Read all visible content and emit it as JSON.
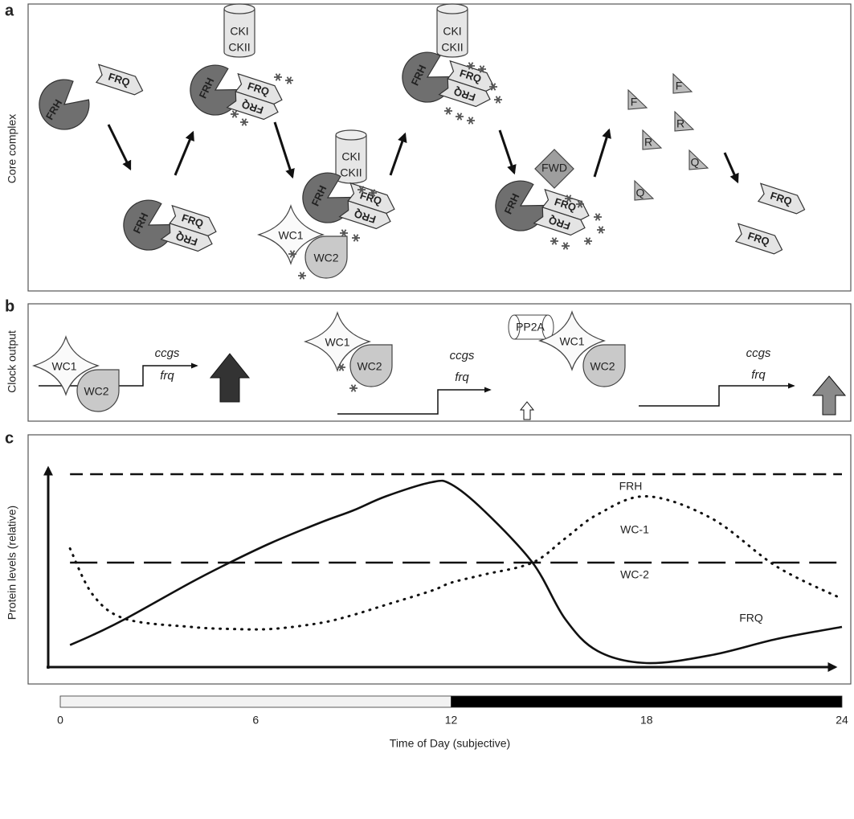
{
  "panel_a": {
    "label": "a",
    "title": "Core complex",
    "stages": [
      {
        "frh": "FRH",
        "frq": [
          "FRQ"
        ]
      },
      {
        "frh": "FRH",
        "frq": [
          "FRQ",
          "FRQ"
        ]
      },
      {
        "kinases": [
          "CKI",
          "CKII"
        ],
        "frh": "FRH",
        "frq": [
          "FRQ",
          "FRQ"
        ]
      },
      {
        "kinases": [
          "CKI",
          "CKII"
        ],
        "frh": "FRH",
        "frq": [
          "FRQ",
          "FRQ"
        ],
        "wc": [
          "WC1",
          "WC2"
        ]
      },
      {
        "kinases": [
          "CKI",
          "CKII"
        ],
        "frh": "FRH",
        "frq": [
          "FRQ",
          "FRQ"
        ]
      },
      {
        "fwd": "FWD",
        "frh": "FRH",
        "frq": [
          "FRQ",
          "FRQ"
        ]
      },
      {
        "fragments": [
          "F",
          "F",
          "R",
          "R",
          "Q",
          "Q"
        ]
      },
      {
        "frq": [
          "FRQ",
          "FRQ"
        ]
      }
    ]
  },
  "panel_b": {
    "label": "b",
    "title": "Clock output",
    "states": [
      {
        "wc": [
          "WC1",
          "WC2"
        ],
        "genes": [
          "ccgs",
          "frq"
        ]
      },
      {
        "wc": [
          "WC1",
          "WC2"
        ],
        "genes": [
          "ccgs",
          "frq"
        ]
      },
      {
        "phosphatase": "PP2A",
        "wc": [
          "WC1",
          "WC2"
        ],
        "genes": [
          "ccgs",
          "frq"
        ]
      }
    ]
  },
  "chart_data": {
    "type": "line",
    "panel_label": "c",
    "ylabel": "Protein levels (relative)",
    "xlabel": "Time of Day (subjective)",
    "x": [
      0.3,
      1,
      2,
      4,
      5.2,
      6.5,
      8,
      9,
      10,
      11.4,
      12,
      13,
      14.5,
      15.5,
      16.5,
      18,
      20,
      22,
      24
    ],
    "series": [
      {
        "name": "FRH",
        "color": "#111111",
        "style": "dashed",
        "values": [
          96,
          96,
          96,
          96,
          96,
          96,
          96,
          96,
          96,
          96,
          96,
          96,
          96,
          96,
          96,
          96,
          96,
          96,
          96
        ]
      },
      {
        "name": "WC-1",
        "color": "#111111",
        "style": "dotted",
        "values": [
          59,
          36,
          24,
          20,
          19,
          19,
          22,
          26,
          31,
          38,
          42,
          46,
          52,
          64,
          76,
          85,
          74,
          50,
          34
        ]
      },
      {
        "name": "WC-2",
        "color": "#111111",
        "style": "long-dashed",
        "values": [
          52,
          52,
          52,
          52,
          52,
          52,
          52,
          52,
          52,
          52,
          52,
          52,
          52,
          52,
          52,
          52,
          52,
          52,
          52
        ]
      },
      {
        "name": "FRQ",
        "color": "#111111",
        "style": "solid",
        "values": [
          11,
          16,
          24,
          42,
          52,
          62,
          72,
          78,
          85,
          92,
          91,
          78,
          52,
          24,
          8,
          2,
          6,
          14,
          20
        ]
      }
    ],
    "xlim": [
      0,
      24
    ],
    "xticks": [
      0,
      6,
      12,
      18,
      24
    ],
    "ylim": [
      0,
      100
    ],
    "day_bar": {
      "light": [
        0,
        12
      ],
      "dark": [
        12,
        24
      ]
    }
  }
}
